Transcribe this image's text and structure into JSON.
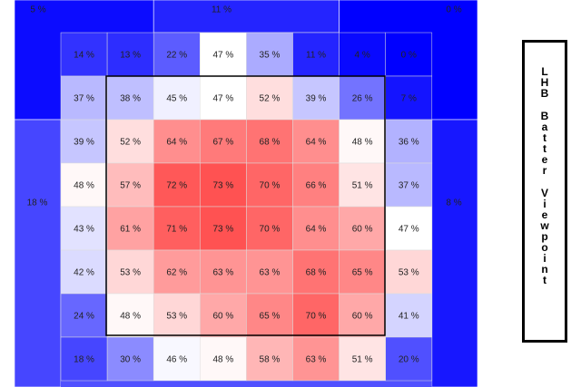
{
  "chart_data": {
    "type": "heatmap",
    "value_format": "percent",
    "color_scale": {
      "low": "#0000ff",
      "mid": "#ffffff",
      "high": "#ff3333",
      "mid_value": 47
    },
    "outer_zones": {
      "top_left": 5,
      "top": 11,
      "top_right": 0,
      "left": 18,
      "right": 8
    },
    "rows": [
      [
        14,
        13,
        22,
        47,
        35,
        11,
        4,
        0
      ],
      [
        37,
        38,
        45,
        47,
        52,
        39,
        26,
        7
      ],
      [
        39,
        52,
        64,
        67,
        68,
        64,
        48,
        36
      ],
      [
        48,
        57,
        72,
        73,
        70,
        66,
        51,
        37
      ],
      [
        43,
        61,
        71,
        73,
        70,
        64,
        60,
        47
      ],
      [
        42,
        53,
        62,
        63,
        63,
        68,
        65,
        53
      ],
      [
        24,
        48,
        53,
        60,
        65,
        70,
        60,
        41
      ],
      [
        18,
        30,
        46,
        48,
        58,
        63,
        51,
        20
      ]
    ],
    "strike_zone": {
      "row_start": 1,
      "row_end": 6,
      "col_start": 1,
      "col_end": 6
    },
    "grid": true
  },
  "viewpoint_label": {
    "words": [
      "LHB",
      "Batter",
      "Viewpoint"
    ]
  }
}
